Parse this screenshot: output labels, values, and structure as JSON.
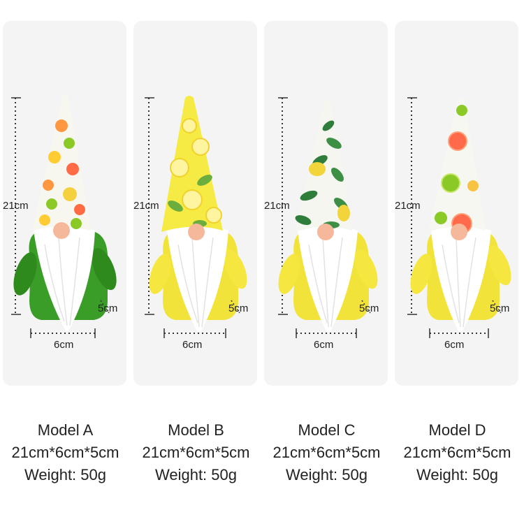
{
  "products": [
    {
      "model": "Model  A",
      "size": "21cm*6cm*5cm",
      "weight": "Weight:  50g",
      "height": "21cm",
      "width": "6cm",
      "depth": "5cm",
      "hat": "fruit-slices",
      "body_color": "#3a9d28"
    },
    {
      "model": "Model  B",
      "size": "21cm*6cm*5cm",
      "weight": "Weight:  50g",
      "height": "21cm",
      "width": "6cm",
      "depth": "5cm",
      "hat": "lemon-slices",
      "body_color": "#f2e33a"
    },
    {
      "model": "Model  C",
      "size": "21cm*6cm*5cm",
      "weight": "Weight:  50g",
      "height": "21cm",
      "width": "6cm",
      "depth": "5cm",
      "hat": "lemons-and-leaves",
      "body_color": "#f2e33a"
    },
    {
      "model": "Model  D",
      "size": "21cm*6cm*5cm",
      "weight": "Weight:  50g",
      "height": "21cm",
      "width": "6cm",
      "depth": "5cm",
      "hat": "grapefruit-and-lime",
      "body_color": "#f2e33a"
    }
  ]
}
